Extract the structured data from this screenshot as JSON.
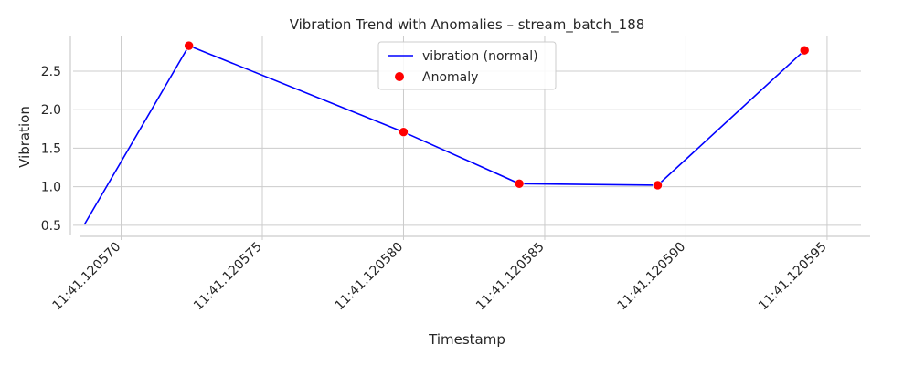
{
  "chart_data": {
    "type": "line",
    "title": "Vibration Trend with Anomalies – stream_batch_188",
    "xlabel": "Timestamp",
    "ylabel": "Vibration",
    "x_ticks": [
      "11:41.120570",
      "11:41.120575",
      "11:41.120580",
      "11:41.120585",
      "11:41.120590",
      "11:41.120595"
    ],
    "x_tick_values": [
      570,
      575,
      580,
      585,
      590,
      595
    ],
    "x_range": [
      568.3,
      596.2
    ],
    "y_ticks": [
      "0.5",
      "1.0",
      "1.5",
      "2.0",
      "2.5"
    ],
    "y_tick_values": [
      0.5,
      1.0,
      1.5,
      2.0,
      2.5
    ],
    "y_range": [
      0.38,
      2.95
    ],
    "grid": true,
    "legend_position": "top-center",
    "series": [
      {
        "name": "vibration (normal)",
        "kind": "line",
        "color": "#0000ff",
        "x": [
          568.7,
          572.4,
          580.0,
          584.1,
          589.0,
          594.2
        ],
        "y": [
          0.51,
          2.83,
          1.71,
          1.04,
          1.02,
          2.77
        ]
      },
      {
        "name": "Anomaly",
        "kind": "scatter",
        "color": "#ff0000",
        "x": [
          572.4,
          580.0,
          584.1,
          589.0,
          594.2
        ],
        "y": [
          2.83,
          1.71,
          1.04,
          1.02,
          2.77
        ]
      }
    ]
  }
}
